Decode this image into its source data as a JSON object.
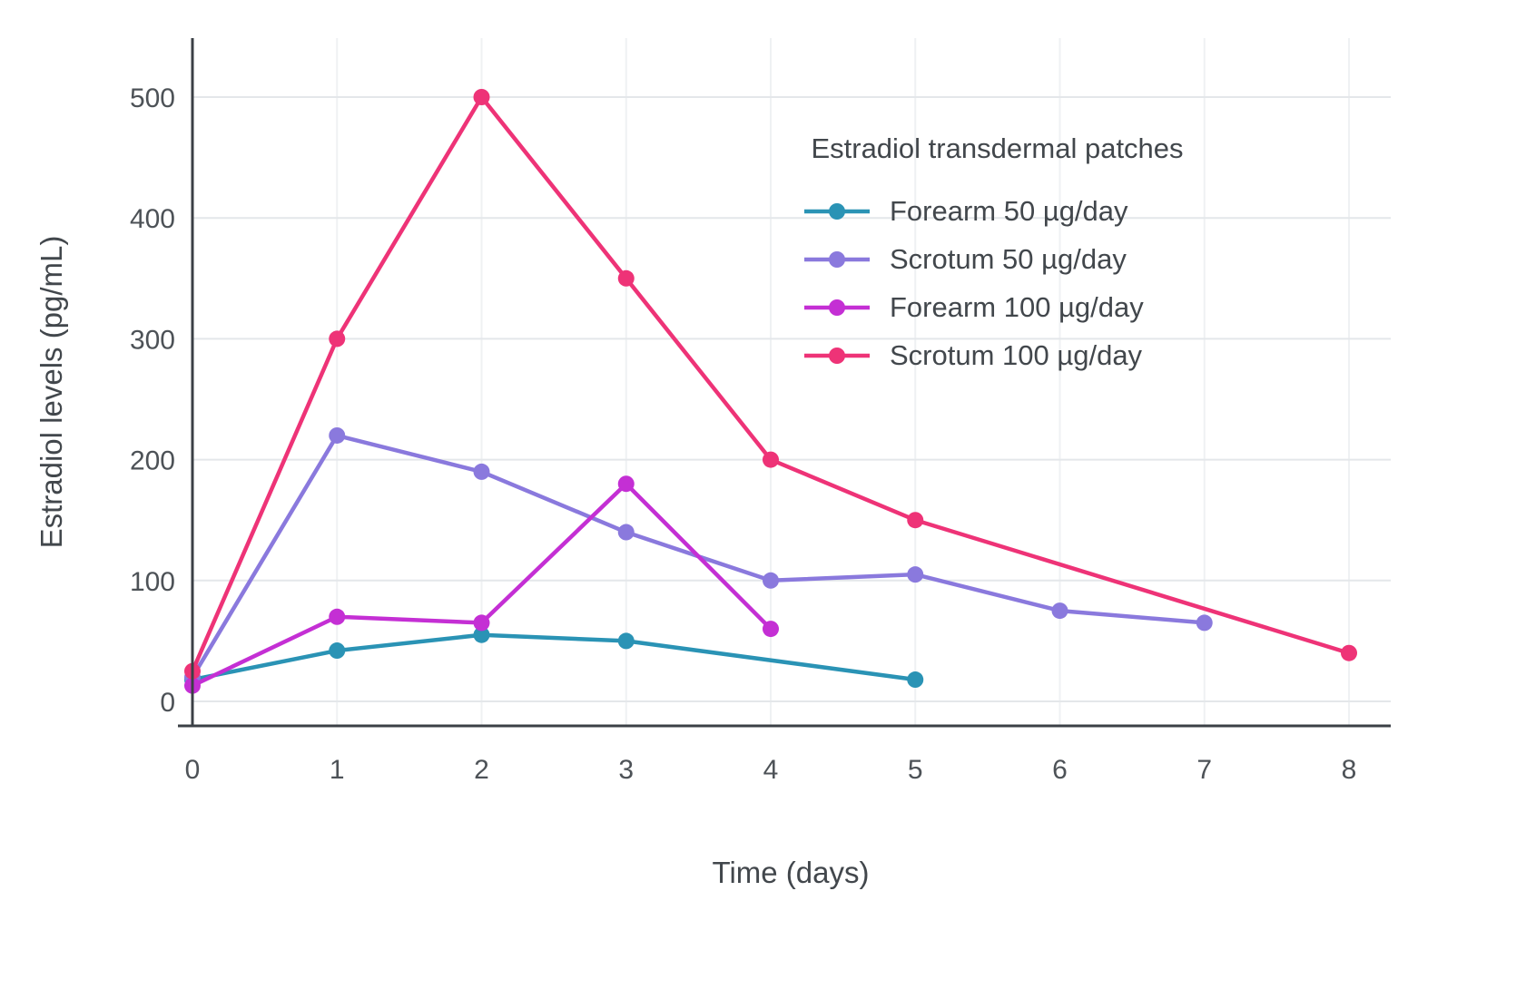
{
  "chart_data": {
    "type": "line",
    "title": "",
    "legend_title": "Estradiol transdermal patches",
    "xlabel": "Time (days)",
    "ylabel": "Estradiol levels (pg/mL)",
    "xlim": [
      0,
      8
    ],
    "ylim": [
      0,
      500
    ],
    "xticks": [
      0,
      1,
      2,
      3,
      4,
      5,
      6,
      7,
      8
    ],
    "yticks": [
      0,
      100,
      200,
      300,
      400,
      500
    ],
    "grid": true,
    "legend_position": "top-right-inside",
    "marker": "circle",
    "axis_color": "#3b4046",
    "gridline_color": "#e4e7ea",
    "tick_label_color": "#4d5257",
    "series": [
      {
        "name": "Forearm 50 µg/day",
        "color": "#2a93b5",
        "x": [
          0,
          1,
          2,
          3,
          5
        ],
        "y": [
          18,
          42,
          55,
          50,
          18
        ]
      },
      {
        "name": "Scrotum 50 µg/day",
        "color": "#8a79dd",
        "x": [
          0,
          1,
          2,
          3,
          4,
          5,
          6,
          7
        ],
        "y": [
          20,
          220,
          190,
          140,
          100,
          105,
          75,
          65
        ]
      },
      {
        "name": "Forearm 100 µg/day",
        "color": "#c42fd4",
        "x": [
          0,
          1,
          2,
          3,
          4
        ],
        "y": [
          13,
          70,
          65,
          180,
          60
        ]
      },
      {
        "name": "Scrotum 100 µg/day",
        "color": "#ee3377",
        "x": [
          0,
          1,
          2,
          3,
          4,
          5,
          8
        ],
        "y": [
          25,
          300,
          500,
          350,
          200,
          150,
          40
        ]
      }
    ]
  }
}
